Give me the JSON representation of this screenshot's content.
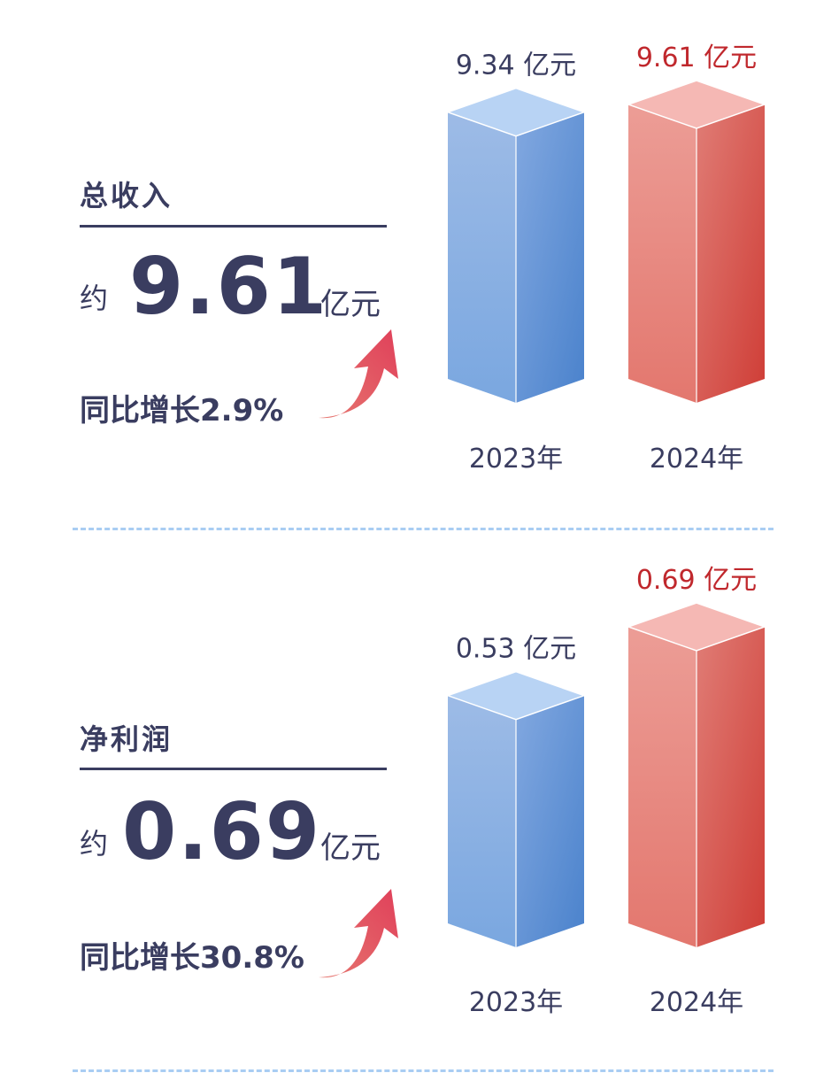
{
  "panels": [
    {
      "title": "总收入",
      "approx_label": "约",
      "value": "9.61",
      "unit": "亿元",
      "growth": "同比增长2.9%",
      "chart_data": {
        "type": "bar",
        "categories": [
          "2023年",
          "2024年"
        ],
        "values": [
          9.34,
          9.61
        ],
        "value_labels": [
          "9.34 亿元",
          "9.61 亿元"
        ],
        "unit": "亿元"
      }
    },
    {
      "title": "净利润",
      "approx_label": "约",
      "value": "0.69",
      "unit": "亿元",
      "growth": "同比增长30.8%",
      "chart_data": {
        "type": "bar",
        "categories": [
          "2023年",
          "2024年"
        ],
        "values": [
          0.53,
          0.69
        ],
        "value_labels": [
          "0.53 亿元",
          "0.69 亿元"
        ],
        "unit": "亿元"
      }
    }
  ],
  "colors": {
    "text": "#3a3d60",
    "accent_red": "#c0282d",
    "bar_2023": "#6f9edd",
    "bar_2024": "#e6766f",
    "divider": "#a9cdf3"
  }
}
